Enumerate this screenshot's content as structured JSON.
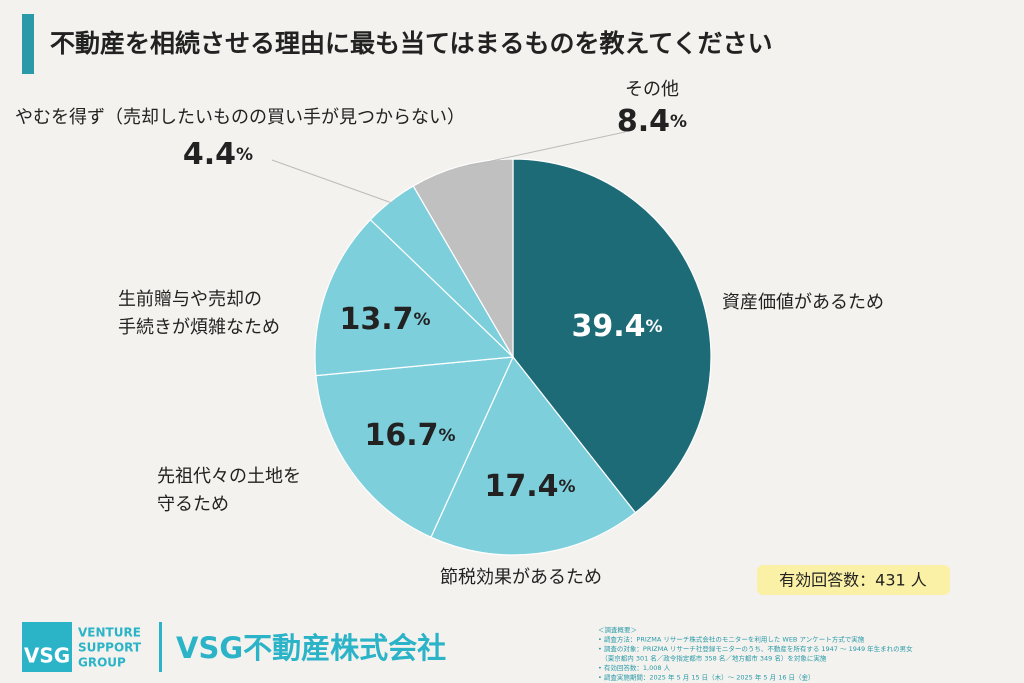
{
  "chart_data": {
    "type": "pie",
    "title": "不動産を相続させる理由に最も当てはまるものを教えてください",
    "categories": [
      "資産価値があるため",
      "節税効果があるため",
      "先祖代々の土地を\n守るため",
      "生前贈与や売却の\n手続きが煩雑なため",
      "やむを得ず（売却したいものの買い手が見つからない）",
      "その他"
    ],
    "values": [
      39.4,
      17.4,
      16.7,
      13.7,
      4.4,
      8.4
    ],
    "value_labels": [
      "39.4%",
      "17.4%",
      "16.7%",
      "13.7%",
      "4.4%",
      "8.4%"
    ],
    "colors": [
      "#1e6b78",
      "#7ecfdc",
      "#7ecfdc",
      "#7ecfdc",
      "#7ecfdc",
      "#c0c0c0"
    ],
    "note": "有効回答数：431 人"
  },
  "footer": {
    "logo_mark": "VSG",
    "logo_text": [
      "VENTURE",
      "SUPPORT",
      "GROUP"
    ],
    "company": "VSG不動産株式会社",
    "survey": [
      "＜調査概要＞",
      "• 調査方法：PRIZMA リサーチ株式会社のモニターを利用した WEB アンケート方式で実施",
      "• 調査の対象：PRIZMA リサーチ社登録モニターのうち、不動産を所有する 1947 〜 1949 年生まれの男女",
      "　（東京都内 301 名／政令指定都市 358 名／地方都市 349 名）を対象に実施",
      "• 有効回答数：1,008 人",
      "• 調査実施期間：2025 年 5 月 15 日（木）〜 2025 年 5 月 16 日（金）"
    ]
  }
}
